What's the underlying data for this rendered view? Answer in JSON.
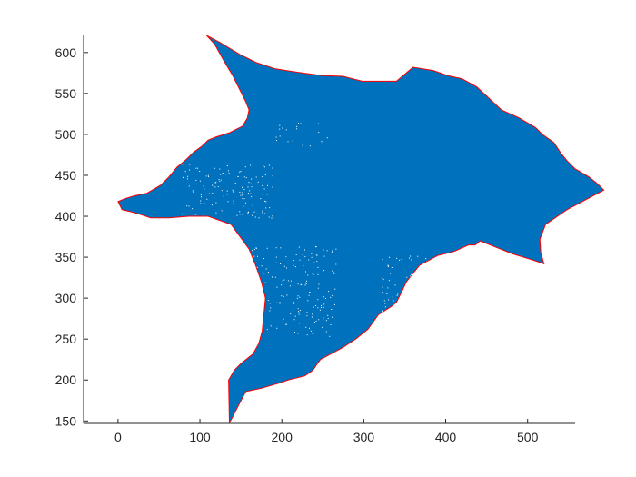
{
  "chart_data": {
    "type": "area",
    "title": "",
    "xlabel": "",
    "ylabel": "",
    "xlim": [
      -42,
      558
    ],
    "ylim": [
      147,
      622
    ],
    "xticks": [
      0,
      100,
      200,
      300,
      400,
      500
    ],
    "yticks": [
      150,
      200,
      250,
      300,
      350,
      400,
      450,
      500,
      550,
      600
    ],
    "grid": false,
    "legend": "none",
    "fill_color": "#0072BD",
    "outline_color": "#FF0000",
    "axis_color": "#262626",
    "series": [
      {
        "x": [
          108,
          125,
          148,
          168,
          192,
          218,
          248,
          275,
          290,
          298,
          300,
          312,
          340,
          360,
          385,
          402,
          420,
          438,
          452,
          468,
          490,
          500,
          510,
          518,
          532,
          540,
          548,
          558,
          575,
          585,
          593,
          548,
          522,
          515,
          516,
          520,
          505,
          482,
          462,
          442,
          436,
          428,
          410,
          390,
          368,
          352,
          345,
          340,
          334,
          318,
          305,
          290,
          275,
          260,
          247,
          242,
          238,
          228,
          208,
          196,
          175,
          156,
          145,
          140,
          136,
          135,
          138,
          142,
          150,
          165,
          172,
          176,
          178,
          180,
          175,
          168,
          160,
          138,
          110,
          86,
          62,
          40,
          28,
          18,
          5,
          0,
          10,
          20,
          35,
          52,
          62,
          72,
          84,
          92,
          103,
          110,
          120,
          136,
          152,
          158,
          160,
          156,
          150,
          140,
          128,
          118,
          108
        ],
        "y": [
          621,
          612,
          598,
          588,
          580,
          576,
          572,
          571,
          567,
          565,
          565,
          565,
          565,
          582,
          578,
          572,
          568,
          558,
          545,
          530,
          520,
          514,
          508,
          500,
          490,
          478,
          468,
          458,
          448,
          440,
          432,
          408,
          390,
          372,
          356,
          342,
          347,
          354,
          362,
          370,
          365,
          365,
          357,
          352,
          340,
          320,
          305,
          295,
          290,
          280,
          262,
          250,
          240,
          232,
          225,
          218,
          212,
          205,
          200,
          196,
          190,
          186,
          165,
          155,
          148,
          200,
          205,
          212,
          220,
          232,
          245,
          260,
          280,
          300,
          320,
          340,
          360,
          390,
          400,
          400,
          398,
          398,
          402,
          405,
          408,
          418,
          422,
          425,
          428,
          438,
          448,
          460,
          470,
          478,
          486,
          493,
          497,
          502,
          510,
          520,
          530,
          540,
          552,
          572,
          592,
          610,
          621
        ]
      }
    ]
  }
}
